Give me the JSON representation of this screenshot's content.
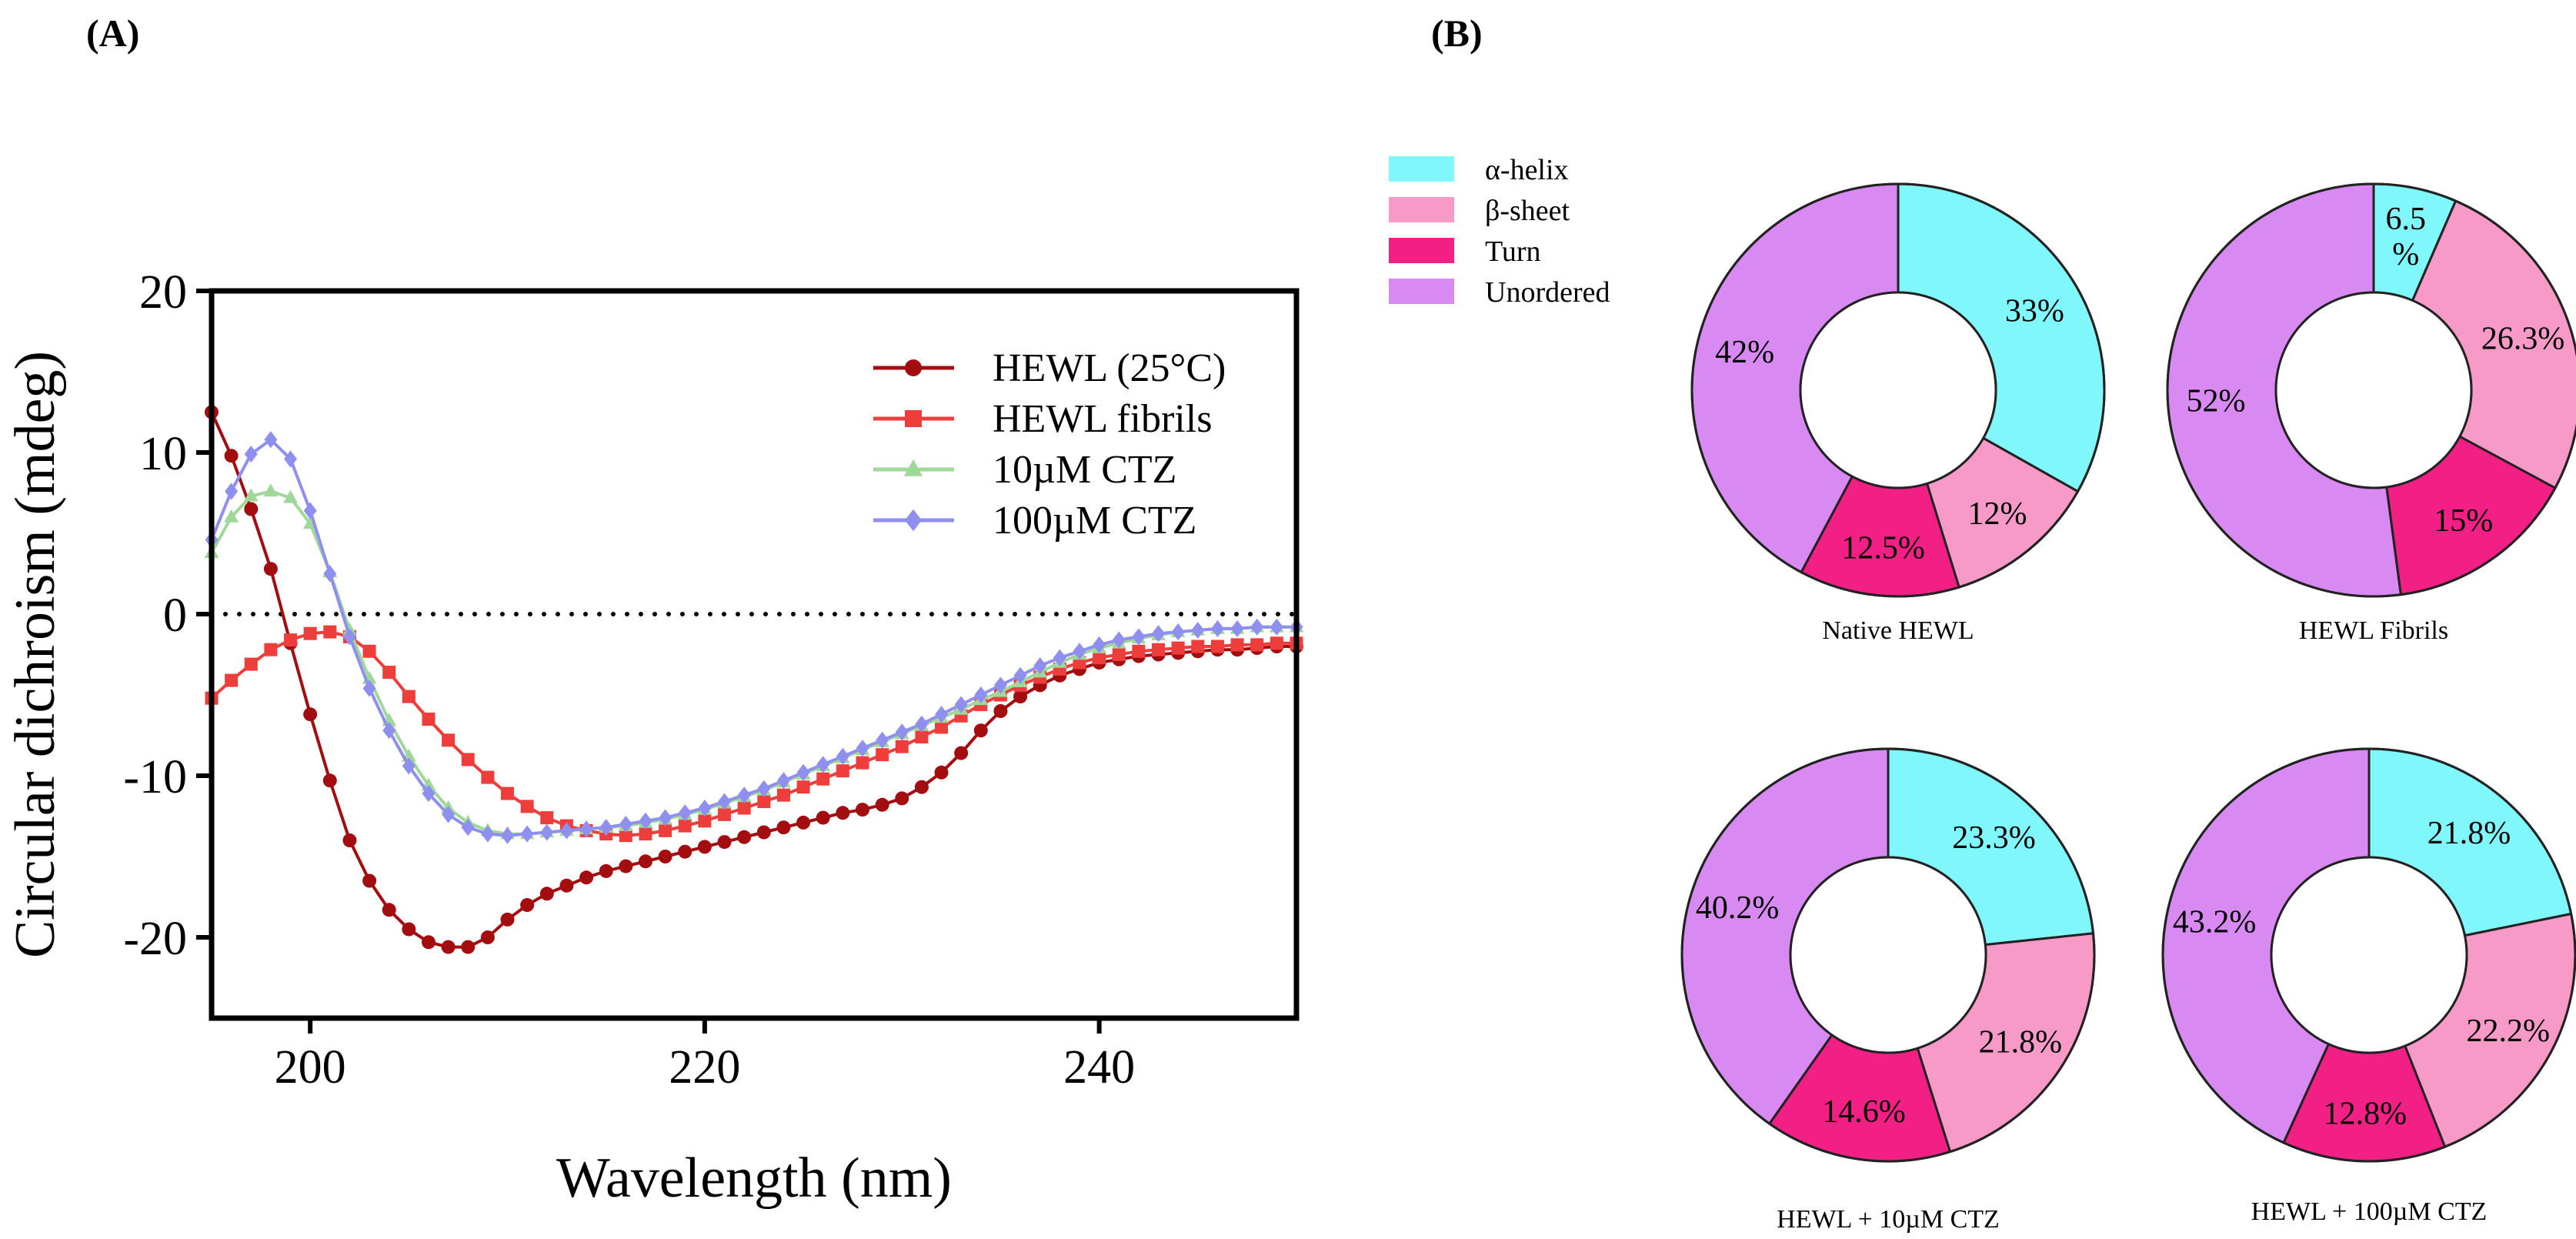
{
  "panels": {
    "a_label": "(A)",
    "b_label": "(B)"
  },
  "chart_data": [
    {
      "type": "line",
      "title": "",
      "xlabel": "Wavelength (nm)",
      "ylabel": "Circular dichroism (mdeg)",
      "xlim": [
        195,
        250
      ],
      "ylim": [
        -25,
        20
      ],
      "xticks": [
        200,
        220,
        240
      ],
      "yticks": [
        -20,
        -10,
        0,
        10,
        20
      ],
      "zero_line": "dotted",
      "legend_position": "top-right",
      "series": [
        {
          "name": "HEWL (25°C)",
          "color": "#a30d10",
          "marker": "circle",
          "points": [
            [
              195,
              12.5
            ],
            [
              196,
              9.8
            ],
            [
              197,
              6.5
            ],
            [
              198,
              2.8
            ],
            [
              199,
              -1.8
            ],
            [
              200,
              -6.2
            ],
            [
              201,
              -10.3
            ],
            [
              202,
              -14.0
            ],
            [
              203,
              -16.5
            ],
            [
              204,
              -18.3
            ],
            [
              205,
              -19.5
            ],
            [
              206,
              -20.3
            ],
            [
              207,
              -20.6
            ],
            [
              208,
              -20.6
            ],
            [
              209,
              -20.0
            ],
            [
              210,
              -18.9
            ],
            [
              211,
              -18.0
            ],
            [
              212,
              -17.3
            ],
            [
              213,
              -16.8
            ],
            [
              214,
              -16.3
            ],
            [
              215,
              -15.9
            ],
            [
              216,
              -15.6
            ],
            [
              217,
              -15.3
            ],
            [
              218,
              -15.0
            ],
            [
              219,
              -14.7
            ],
            [
              220,
              -14.4
            ],
            [
              221,
              -14.1
            ],
            [
              222,
              -13.8
            ],
            [
              223,
              -13.5
            ],
            [
              224,
              -13.2
            ],
            [
              225,
              -12.9
            ],
            [
              226,
              -12.6
            ],
            [
              227,
              -12.3
            ],
            [
              228,
              -12.1
            ],
            [
              229,
              -11.8
            ],
            [
              230,
              -11.4
            ],
            [
              231,
              -10.7
            ],
            [
              232,
              -9.8
            ],
            [
              233,
              -8.6
            ],
            [
              234,
              -7.2
            ],
            [
              235,
              -6.0
            ],
            [
              236,
              -5.1
            ],
            [
              237,
              -4.4
            ],
            [
              238,
              -3.8
            ],
            [
              239,
              -3.4
            ],
            [
              240,
              -3.0
            ],
            [
              241,
              -2.8
            ],
            [
              242,
              -2.6
            ],
            [
              243,
              -2.5
            ],
            [
              244,
              -2.4
            ],
            [
              245,
              -2.3
            ],
            [
              246,
              -2.2
            ],
            [
              247,
              -2.2
            ],
            [
              248,
              -2.1
            ],
            [
              249,
              -2.0
            ],
            [
              250,
              -2.0
            ]
          ]
        },
        {
          "name": "HEWL fibrils",
          "color": "#ee3e3b",
          "marker": "square",
          "points": [
            [
              195,
              -5.2
            ],
            [
              196,
              -4.1
            ],
            [
              197,
              -3.1
            ],
            [
              198,
              -2.2
            ],
            [
              199,
              -1.6
            ],
            [
              200,
              -1.2
            ],
            [
              201,
              -1.1
            ],
            [
              202,
              -1.4
            ],
            [
              203,
              -2.3
            ],
            [
              204,
              -3.6
            ],
            [
              205,
              -5.1
            ],
            [
              206,
              -6.5
            ],
            [
              207,
              -7.8
            ],
            [
              208,
              -9.0
            ],
            [
              209,
              -10.1
            ],
            [
              210,
              -11.1
            ],
            [
              211,
              -11.9
            ],
            [
              212,
              -12.6
            ],
            [
              213,
              -13.1
            ],
            [
              214,
              -13.4
            ],
            [
              215,
              -13.6
            ],
            [
              216,
              -13.7
            ],
            [
              217,
              -13.6
            ],
            [
              218,
              -13.4
            ],
            [
              219,
              -13.1
            ],
            [
              220,
              -12.8
            ],
            [
              221,
              -12.4
            ],
            [
              222,
              -12.0
            ],
            [
              223,
              -11.6
            ],
            [
              224,
              -11.2
            ],
            [
              225,
              -10.7
            ],
            [
              226,
              -10.2
            ],
            [
              227,
              -9.7
            ],
            [
              228,
              -9.2
            ],
            [
              229,
              -8.7
            ],
            [
              230,
              -8.2
            ],
            [
              231,
              -7.6
            ],
            [
              232,
              -7.0
            ],
            [
              233,
              -6.3
            ],
            [
              234,
              -5.6
            ],
            [
              235,
              -5.0
            ],
            [
              236,
              -4.4
            ],
            [
              237,
              -3.9
            ],
            [
              238,
              -3.4
            ],
            [
              239,
              -3.0
            ],
            [
              240,
              -2.7
            ],
            [
              241,
              -2.5
            ],
            [
              242,
              -2.3
            ],
            [
              243,
              -2.2
            ],
            [
              244,
              -2.1
            ],
            [
              245,
              -2.0
            ],
            [
              246,
              -2.0
            ],
            [
              247,
              -1.9
            ],
            [
              248,
              -1.9
            ],
            [
              249,
              -1.8
            ],
            [
              250,
              -1.8
            ]
          ]
        },
        {
          "name": "10µM CTZ",
          "color": "#9fd89a",
          "marker": "triangle",
          "points": [
            [
              195,
              3.8
            ],
            [
              196,
              6.0
            ],
            [
              197,
              7.3
            ],
            [
              198,
              7.6
            ],
            [
              199,
              7.2
            ],
            [
              200,
              5.6
            ],
            [
              201,
              2.6
            ],
            [
              202,
              -1.0
            ],
            [
              203,
              -4.0
            ],
            [
              204,
              -6.6
            ],
            [
              205,
              -8.8
            ],
            [
              206,
              -10.6
            ],
            [
              207,
              -12.0
            ],
            [
              208,
              -12.9
            ],
            [
              209,
              -13.4
            ],
            [
              210,
              -13.6
            ],
            [
              211,
              -13.6
            ],
            [
              212,
              -13.5
            ],
            [
              213,
              -13.4
            ],
            [
              214,
              -13.3
            ],
            [
              215,
              -13.2
            ],
            [
              216,
              -13.1
            ],
            [
              217,
              -12.9
            ],
            [
              218,
              -12.7
            ],
            [
              219,
              -12.4
            ],
            [
              220,
              -12.1
            ],
            [
              221,
              -11.7
            ],
            [
              222,
              -11.3
            ],
            [
              223,
              -10.9
            ],
            [
              224,
              -10.4
            ],
            [
              225,
              -9.9
            ],
            [
              226,
              -9.4
            ],
            [
              227,
              -8.9
            ],
            [
              228,
              -8.4
            ],
            [
              229,
              -7.9
            ],
            [
              230,
              -7.4
            ],
            [
              231,
              -6.9
            ],
            [
              232,
              -6.4
            ],
            [
              233,
              -5.9
            ],
            [
              234,
              -5.3
            ],
            [
              235,
              -4.8
            ],
            [
              236,
              -4.2
            ],
            [
              237,
              -3.6
            ],
            [
              238,
              -3.0
            ],
            [
              239,
              -2.5
            ],
            [
              240,
              -2.1
            ],
            [
              241,
              -1.8
            ],
            [
              242,
              -1.5
            ],
            [
              243,
              -1.3
            ],
            [
              244,
              -1.1
            ],
            [
              245,
              -1.0
            ],
            [
              246,
              -0.9
            ],
            [
              247,
              -0.9
            ],
            [
              248,
              -0.8
            ],
            [
              249,
              -0.8
            ],
            [
              250,
              -0.8
            ]
          ]
        },
        {
          "name": "100µM CTZ",
          "color": "#8f8fef",
          "marker": "diamond",
          "points": [
            [
              195,
              4.6
            ],
            [
              196,
              7.6
            ],
            [
              197,
              9.9
            ],
            [
              198,
              10.8
            ],
            [
              199,
              9.6
            ],
            [
              200,
              6.4
            ],
            [
              201,
              2.5
            ],
            [
              202,
              -1.4
            ],
            [
              203,
              -4.6
            ],
            [
              204,
              -7.2
            ],
            [
              205,
              -9.4
            ],
            [
              206,
              -11.1
            ],
            [
              207,
              -12.4
            ],
            [
              208,
              -13.2
            ],
            [
              209,
              -13.6
            ],
            [
              210,
              -13.7
            ],
            [
              211,
              -13.6
            ],
            [
              212,
              -13.5
            ],
            [
              213,
              -13.4
            ],
            [
              214,
              -13.3
            ],
            [
              215,
              -13.2
            ],
            [
              216,
              -13.0
            ],
            [
              217,
              -12.8
            ],
            [
              218,
              -12.6
            ],
            [
              219,
              -12.3
            ],
            [
              220,
              -12.0
            ],
            [
              221,
              -11.6
            ],
            [
              222,
              -11.2
            ],
            [
              223,
              -10.8
            ],
            [
              224,
              -10.3
            ],
            [
              225,
              -9.8
            ],
            [
              226,
              -9.3
            ],
            [
              227,
              -8.8
            ],
            [
              228,
              -8.3
            ],
            [
              229,
              -7.8
            ],
            [
              230,
              -7.3
            ],
            [
              231,
              -6.8
            ],
            [
              232,
              -6.2
            ],
            [
              233,
              -5.6
            ],
            [
              234,
              -5.0
            ],
            [
              235,
              -4.4
            ],
            [
              236,
              -3.8
            ],
            [
              237,
              -3.2
            ],
            [
              238,
              -2.7
            ],
            [
              239,
              -2.3
            ],
            [
              240,
              -1.9
            ],
            [
              241,
              -1.6
            ],
            [
              242,
              -1.4
            ],
            [
              243,
              -1.2
            ],
            [
              244,
              -1.1
            ],
            [
              245,
              -1.0
            ],
            [
              246,
              -0.9
            ],
            [
              247,
              -0.9
            ],
            [
              248,
              -0.8
            ],
            [
              249,
              -0.8
            ],
            [
              250,
              -0.8
            ]
          ]
        }
      ]
    },
    {
      "type": "pie",
      "donut": true,
      "legend_position": "top-left",
      "categories": [
        "α-helix",
        "β-sheet",
        "Turn",
        "Unordered"
      ],
      "colors": [
        "#80f7fa",
        "#f79ac8",
        "#f21f85",
        "#d98af2"
      ],
      "charts": [
        {
          "name": "Native HEWL",
          "values": [
            33,
            12,
            12.5,
            42
          ],
          "labels": [
            "33%",
            "12%",
            "12.5%",
            "42%"
          ]
        },
        {
          "name": "HEWL Fibrils",
          "values": [
            6.5,
            26.3,
            15,
            52
          ],
          "labels": [
            "6.5 %",
            "26.3%",
            "15%",
            "52%"
          ]
        },
        {
          "name": "HEWL + 10µM CTZ",
          "values": [
            23.3,
            21.8,
            14.6,
            40.2
          ],
          "labels": [
            "23.3%",
            "21.8%",
            "14.6%",
            "40.2%"
          ]
        },
        {
          "name": "HEWL + 100µM CTZ",
          "values": [
            21.8,
            22.2,
            12.8,
            43.2
          ],
          "labels": [
            "21.8%",
            "22.2%",
            "12.8%",
            "43.2%"
          ]
        }
      ]
    }
  ]
}
